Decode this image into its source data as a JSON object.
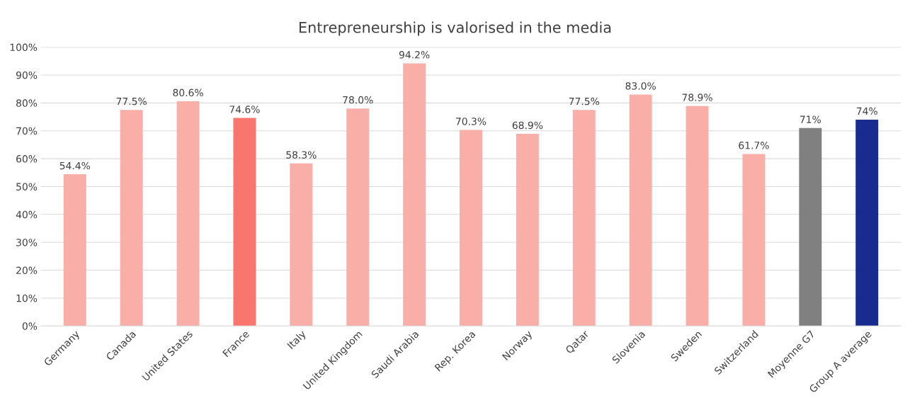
{
  "chart_data": {
    "type": "bar",
    "title": "Entrepreneurship is valorised in the media",
    "categories": [
      "Germany",
      "Canada",
      "United States",
      "France",
      "Italy",
      "United Kingdom",
      "Saudi Arabia",
      "Rep. Korea",
      "Norway",
      "Qatar",
      "Slovenia",
      "Sweden",
      "Switzerland",
      "Moyenne G7",
      "Group A average"
    ],
    "values": [
      54.4,
      77.5,
      80.6,
      74.6,
      58.3,
      78.0,
      94.2,
      70.3,
      68.9,
      77.5,
      83.0,
      78.9,
      61.7,
      71,
      74
    ],
    "value_labels": [
      "54.4%",
      "77.5%",
      "80.6%",
      "74.6%",
      "58.3%",
      "78.0%",
      "94.2%",
      "70.3%",
      "68.9%",
      "77.5%",
      "83.0%",
      "78.9%",
      "61.7%",
      "71%",
      "74%"
    ],
    "colors": [
      "#f9aea8",
      "#f9aea8",
      "#f9aea8",
      "#f8766d",
      "#f9aea8",
      "#f9aea8",
      "#f9aea8",
      "#f9aea8",
      "#f9aea8",
      "#f9aea8",
      "#f9aea8",
      "#f9aea8",
      "#f9aea8",
      "#808080",
      "#172c8e"
    ],
    "ylim": [
      0,
      100
    ],
    "yticks": [
      {
        "value": 0,
        "label": "0%"
      },
      {
        "value": 10,
        "label": "10%"
      },
      {
        "value": 20,
        "label": "20%"
      },
      {
        "value": 30,
        "label": "30%"
      },
      {
        "value": 40,
        "label": "40%"
      },
      {
        "value": 50,
        "label": "50%"
      },
      {
        "value": 60,
        "label": "60%"
      },
      {
        "value": 70,
        "label": "70%"
      },
      {
        "value": 80,
        "label": "80%"
      },
      {
        "value": 90,
        "label": "90%"
      },
      {
        "value": 100,
        "label": "100%"
      }
    ],
    "grid": "y"
  }
}
